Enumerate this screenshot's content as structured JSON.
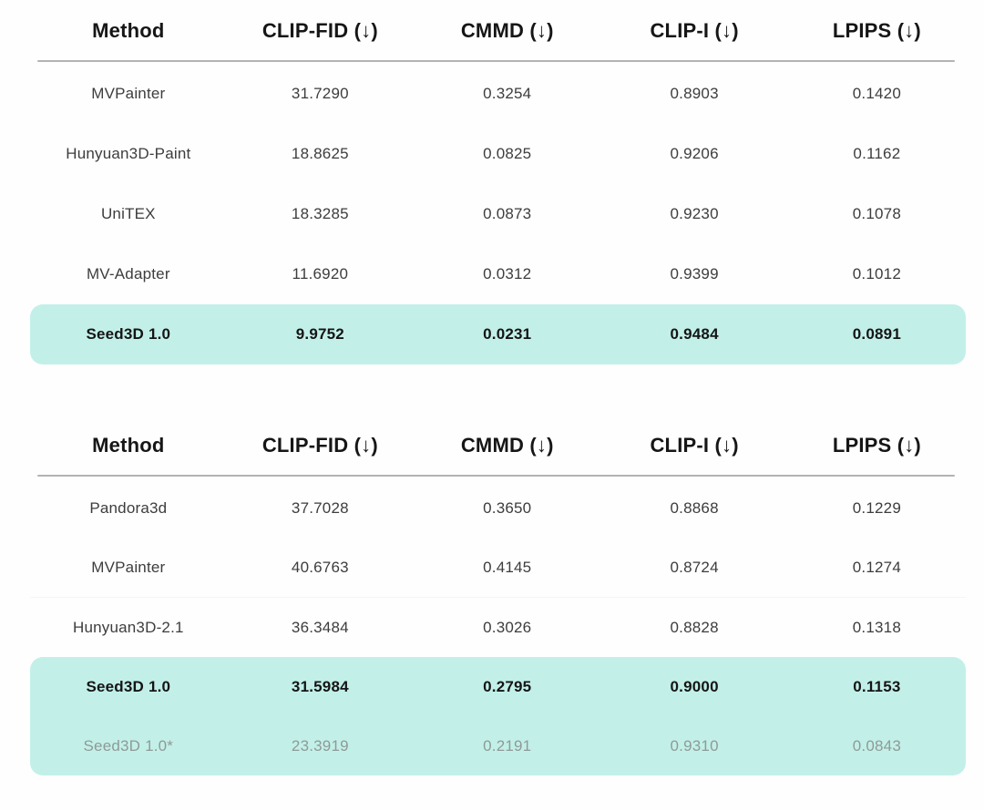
{
  "palette": {
    "page_background": "#fefefe",
    "highlight_background": "#c2f0e9",
    "header_rule": "#b3b3b3",
    "text_primary": "#3d3d3d",
    "text_bold": "#151515",
    "text_muted": "#8f9a97"
  },
  "icons": {
    "down_arrow": "↓"
  },
  "tables": [
    {
      "name": "benchmark-table-1",
      "columns": [
        "Method",
        "CLIP-FID (↓)",
        "CMMD (↓)",
        "CLIP-I (↓)",
        "LPIPS (↓)"
      ],
      "rows": [
        {
          "method": "MVPainter",
          "values": [
            "31.7290",
            "0.3254",
            "0.8903",
            "0.1420"
          ],
          "highlight": false,
          "bold": false,
          "muted": false
        },
        {
          "method": "Hunyuan3D-Paint",
          "values": [
            "18.8625",
            "0.0825",
            "0.9206",
            "0.1162"
          ],
          "highlight": false,
          "bold": false,
          "muted": false
        },
        {
          "method": "UniTEX",
          "values": [
            "18.3285",
            "0.0873",
            "0.9230",
            "0.1078"
          ],
          "highlight": false,
          "bold": false,
          "muted": false
        },
        {
          "method": "MV-Adapter",
          "values": [
            "11.6920",
            "0.0312",
            "0.9399",
            "0.1012"
          ],
          "highlight": false,
          "bold": false,
          "muted": false
        },
        {
          "method": "Seed3D 1.0",
          "values": [
            "9.9752",
            "0.0231",
            "0.9484",
            "0.0891"
          ],
          "highlight": true,
          "bold": true,
          "muted": false
        }
      ]
    },
    {
      "name": "benchmark-table-2",
      "columns": [
        "Method",
        "CLIP-FID (↓)",
        "CMMD (↓)",
        "CLIP-I (↓)",
        "LPIPS (↓)"
      ],
      "rows": [
        {
          "method": "Pandora3d",
          "values": [
            "37.7028",
            "0.3650",
            "0.8868",
            "0.1229"
          ],
          "highlight": false,
          "bold": false,
          "muted": false
        },
        {
          "method": "MVPainter",
          "values": [
            "40.6763",
            "0.4145",
            "0.8724",
            "0.1274"
          ],
          "highlight": false,
          "bold": false,
          "muted": false
        },
        {
          "method": "Hunyuan3D-2.1",
          "values": [
            "36.3484",
            "0.3026",
            "0.8828",
            "0.1318"
          ],
          "highlight": false,
          "bold": false,
          "muted": false,
          "divider": true
        },
        {
          "method": "Seed3D 1.0",
          "values": [
            "31.5984",
            "0.2795",
            "0.9000",
            "0.1153"
          ],
          "highlight": true,
          "bold": true,
          "muted": false
        },
        {
          "method": "Seed3D 1.0*",
          "values": [
            "23.3919",
            "0.2191",
            "0.9310",
            "0.0843"
          ],
          "highlight": true,
          "bold": false,
          "muted": true
        }
      ]
    }
  ]
}
